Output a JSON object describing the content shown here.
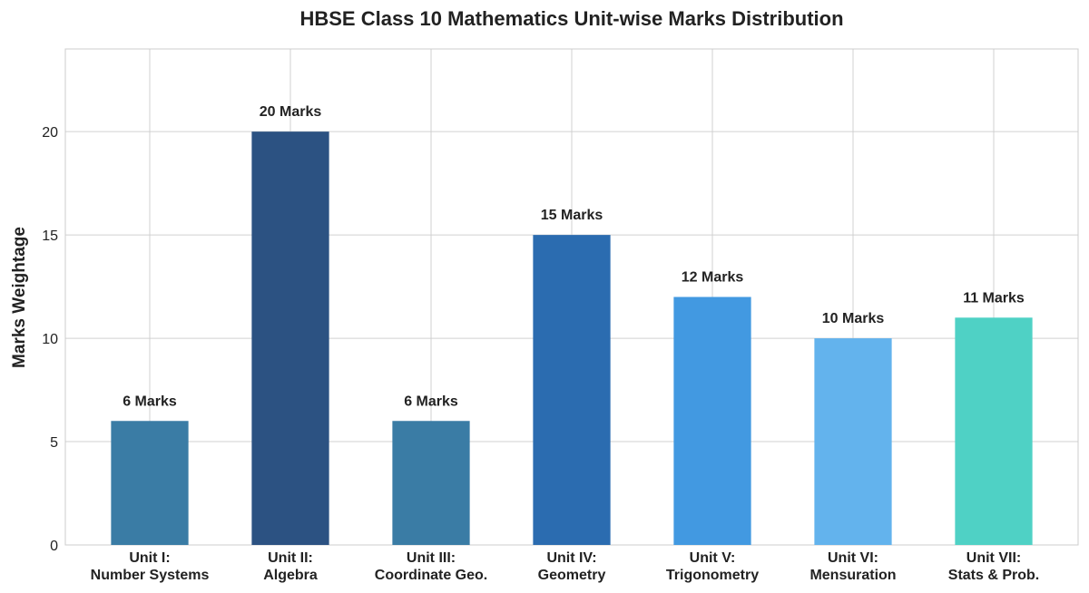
{
  "chart_data": {
    "type": "bar",
    "title": "HBSE Class 10 Mathematics Unit-wise Marks Distribution",
    "y_label": "Marks Weightage",
    "categories": [
      "Unit I:\nNumber Systems",
      "Unit II:\nAlgebra",
      "Unit III:\nCoordinate Geo.",
      "Unit IV:\nGeometry",
      "Unit V:\nTrigonometry",
      "Unit VI:\nMensuration",
      "Unit VII:\nStats & Prob."
    ],
    "values": [
      6,
      20,
      6,
      15,
      12,
      10,
      11
    ],
    "value_labels": [
      "6 Marks",
      "20 Marks",
      "6 Marks",
      "15 Marks",
      "12 Marks",
      "10 Marks",
      "11 Marks"
    ],
    "colors": [
      "#3a7ca5",
      "#2c5282",
      "#3a7ca5",
      "#2b6cb0",
      "#4299e1",
      "#63b3ed",
      "#4fd1c5"
    ],
    "ylim": [
      0,
      24
    ],
    "yticks": [
      0,
      5,
      10,
      15,
      20
    ],
    "grid": true
  }
}
